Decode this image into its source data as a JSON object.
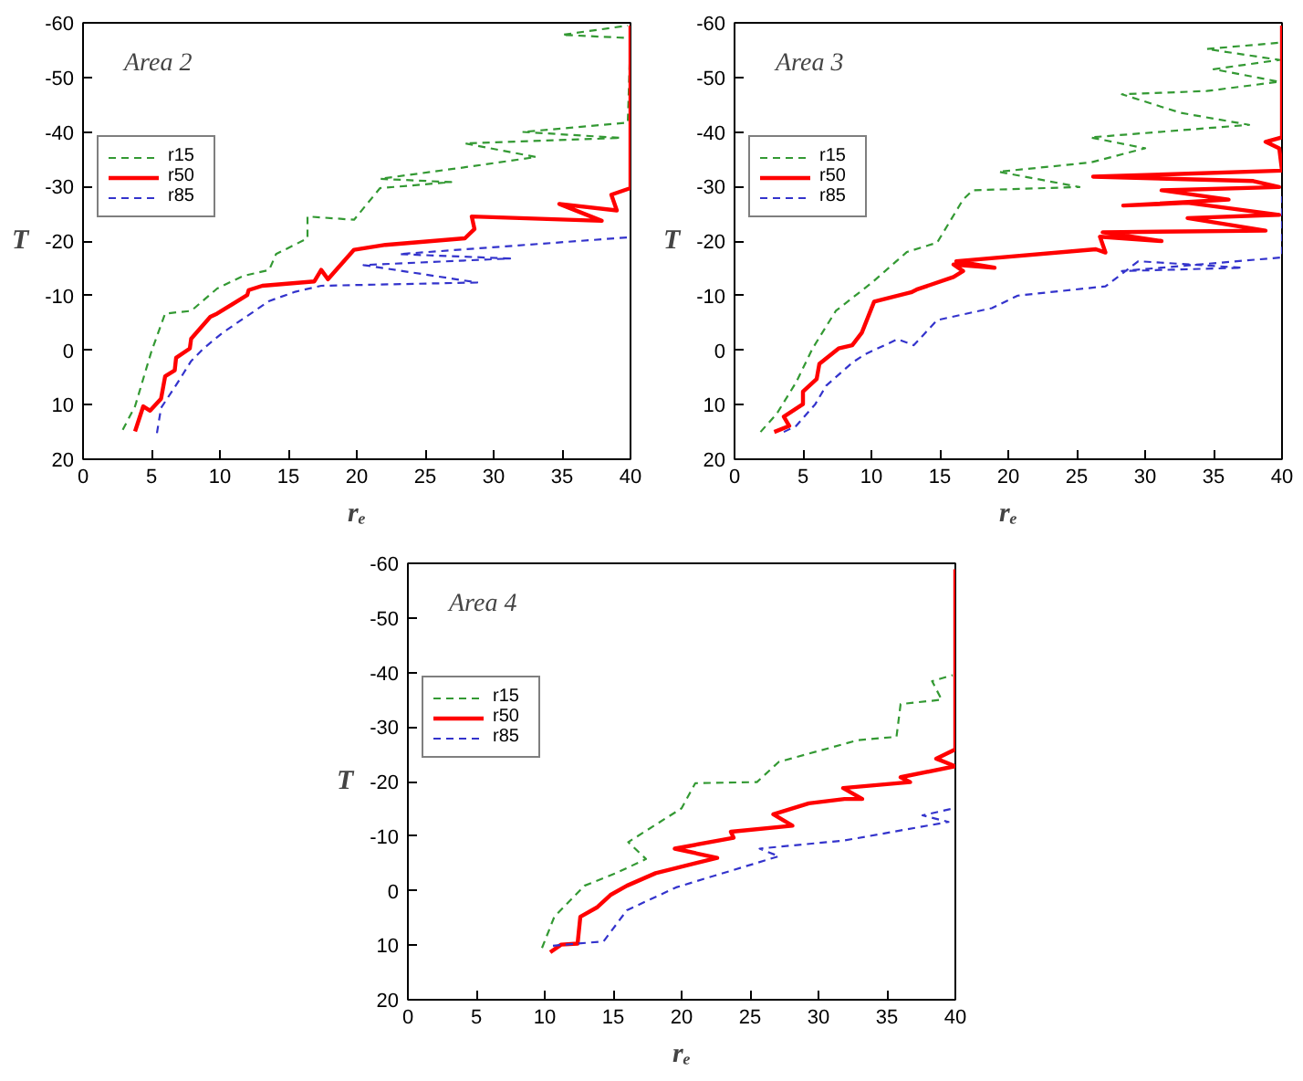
{
  "chart_data": [
    {
      "type": "line",
      "title": "Area 2",
      "xlabel": "rₑ",
      "ylabel": "T",
      "xlim": [
        0,
        40
      ],
      "xticks": [
        0,
        5,
        10,
        15,
        20,
        25,
        30,
        35,
        40
      ],
      "ylim": [
        20,
        -60
      ],
      "yticks": [
        -60,
        -50,
        -40,
        -30,
        -20,
        -10,
        0,
        10,
        20
      ],
      "grid": false,
      "legend": "top left",
      "marker": "none",
      "series": [
        {
          "name": "r15",
          "color": "#339933",
          "line_style": "dashed",
          "x": [
            2.9,
            3.8,
            5.0,
            6.0,
            7.9,
            9.8,
            11.7,
            13.6,
            14.1,
            16.4,
            16.4,
            19.8,
            21.7,
            26.9,
            21.7,
            28.4,
            33.1,
            27.9,
            39.3,
            32.1,
            39.8,
            40.0,
            35.0,
            39.8
          ],
          "values": [
            14.6,
            10.3,
            0.2,
            -6.7,
            -7.2,
            -11.3,
            -13.6,
            -14.7,
            -17.6,
            -20.5,
            -24.5,
            -23.9,
            -29.7,
            -30.8,
            -31.4,
            -33.7,
            -35.4,
            -37.9,
            -38.9,
            -40.0,
            -41.7,
            -57.2,
            -57.8,
            -59.5
          ]
        },
        {
          "name": "r50",
          "color": "#ff0000",
          "line_style": "solid",
          "x": [
            3.8,
            4.4,
            4.9,
            5.7,
            6.0,
            6.7,
            6.8,
            7.8,
            7.9,
            9.3,
            9.8,
            12.0,
            12.1,
            13.1,
            16.9,
            17.4,
            17.9,
            19.8,
            22.1,
            27.9,
            28.6,
            28.4,
            37.9,
            34.8,
            39.0,
            38.6,
            40.0,
            40.0
          ],
          "values": [
            14.9,
            10.3,
            11.1,
            8.9,
            4.8,
            3.7,
            1.4,
            -0.3,
            -2.1,
            -6.1,
            -6.7,
            -10.1,
            -11.0,
            -11.8,
            -12.6,
            -14.7,
            -13.0,
            -18.4,
            -19.3,
            -20.5,
            -22.2,
            -24.5,
            -23.7,
            -26.8,
            -25.6,
            -28.5,
            -29.7,
            -59.5
          ]
        },
        {
          "name": "r85",
          "color": "#3333cc",
          "line_style": "dashed",
          "x": [
            5.4,
            5.7,
            6.9,
            7.9,
            8.8,
            10.2,
            11.9,
            13.6,
            15.5,
            17.4,
            28.8,
            20.5,
            31.2,
            23.1,
            40.0
          ],
          "values": [
            15.2,
            10.6,
            6.0,
            2.0,
            -0.3,
            -3.2,
            -6.1,
            -9.0,
            -10.7,
            -11.8,
            -12.4,
            -15.6,
            -16.8,
            -17.6,
            -20.7
          ]
        }
      ]
    },
    {
      "type": "line",
      "title": "Area 3",
      "xlabel": "rₑ",
      "ylabel": "T",
      "xlim": [
        0,
        40
      ],
      "xticks": [
        0,
        5,
        10,
        15,
        20,
        25,
        30,
        35,
        40
      ],
      "ylim": [
        20,
        -60
      ],
      "yticks": [
        -60,
        -50,
        -40,
        -30,
        -20,
        -10,
        0,
        10,
        20
      ],
      "grid": false,
      "legend": "top left",
      "marker": "none",
      "series": [
        {
          "name": "r15",
          "color": "#339933",
          "line_style": "dashed",
          "x": [
            1.9,
            3.1,
            4.5,
            5.7,
            7.4,
            10.0,
            12.6,
            14.8,
            16.7,
            17.4,
            25.2,
            19.3,
            26.0,
            30.0,
            26.0,
            37.6,
            32.6,
            28.3,
            34.5,
            39.8,
            35.0,
            39.8,
            34.5,
            40.0
          ],
          "values": [
            15.0,
            11.6,
            5.9,
            -0.3,
            -7.2,
            -12.3,
            -18.0,
            -19.7,
            -27.6,
            -29.3,
            -29.9,
            -32.7,
            -34.4,
            -37.0,
            -39.0,
            -41.3,
            -43.5,
            -46.9,
            -47.5,
            -49.2,
            -51.5,
            -53.2,
            -55.2,
            -56.4
          ]
        },
        {
          "name": "r50",
          "color": "#ff0000",
          "line_style": "solid",
          "x": [
            2.9,
            4.0,
            3.6,
            5.0,
            5.0,
            6.0,
            6.2,
            7.6,
            8.6,
            9.3,
            10.2,
            12.9,
            13.3,
            16.0,
            16.7,
            16.0,
            19.0,
            16.2,
            26.4,
            27.1,
            26.7,
            31.2,
            26.9,
            38.8,
            33.1,
            39.8,
            33.1,
            28.4,
            36.1,
            31.2,
            39.8,
            37.9,
            26.2,
            40.0,
            39.8,
            38.8,
            40.0,
            40.0
          ],
          "values": [
            15.0,
            13.9,
            12.2,
            9.9,
            7.6,
            5.3,
            2.5,
            -0.3,
            -0.9,
            -3.2,
            -8.9,
            -10.6,
            -11.1,
            -13.4,
            -14.5,
            -15.7,
            -15.1,
            -16.3,
            -18.5,
            -17.9,
            -20.8,
            -20.0,
            -21.6,
            -21.9,
            -24.2,
            -24.8,
            -27.0,
            -26.5,
            -27.6,
            -29.3,
            -29.9,
            -31.0,
            -31.8,
            -32.9,
            -37.0,
            -38.2,
            -39.0,
            -59.5
          ]
        },
        {
          "name": "r85",
          "color": "#3333cc",
          "line_style": "dashed",
          "x": [
            3.6,
            4.5,
            5.9,
            6.7,
            8.6,
            9.5,
            11.9,
            13.1,
            14.8,
            18.8,
            20.7,
            27.1,
            29.5,
            37.1,
            28.3,
            40.0,
            40.0
          ],
          "values": [
            15.0,
            13.9,
            9.9,
            6.5,
            2.3,
            0.8,
            -2.0,
            -0.9,
            -5.5,
            -7.7,
            -10.0,
            -11.7,
            -16.3,
            -15.1,
            -14.5,
            -17.0,
            -28.2
          ]
        }
      ]
    },
    {
      "type": "line",
      "title": "Area 4",
      "xlabel": "rₑ",
      "ylabel": "T",
      "xlim": [
        0,
        40
      ],
      "xticks": [
        0,
        5,
        10,
        15,
        20,
        25,
        30,
        35,
        40
      ],
      "ylim": [
        20,
        -60
      ],
      "yticks": [
        -60,
        -50,
        -40,
        -30,
        -20,
        -10,
        0,
        10,
        20
      ],
      "grid": false,
      "legend": "top left",
      "marker": "none",
      "series": [
        {
          "name": "r15",
          "color": "#339933",
          "line_style": "dashed",
          "x": [
            9.8,
            10.7,
            12.9,
            15.2,
            17.4,
            16.1,
            20.0,
            21.0,
            25.5,
            27.1,
            32.9,
            35.7,
            36.0,
            39.0,
            38.3,
            39.8
          ],
          "values": [
            10.5,
            4.8,
            -0.9,
            -3.2,
            -5.8,
            -8.9,
            -15.1,
            -19.7,
            -19.9,
            -23.6,
            -27.6,
            -28.2,
            -34.2,
            -35.0,
            -38.4,
            -39.5
          ]
        },
        {
          "name": "r50",
          "color": "#ff0000",
          "line_style": "solid",
          "x": [
            10.4,
            11.2,
            12.4,
            12.6,
            13.8,
            14.8,
            16.0,
            18.1,
            22.6,
            19.5,
            23.8,
            23.6,
            28.1,
            26.7,
            29.3,
            31.9,
            33.2,
            31.8,
            36.7,
            36.0,
            40.0,
            38.6,
            40.0,
            40.0
          ],
          "values": [
            11.3,
            9.9,
            9.7,
            4.8,
            3.1,
            0.8,
            -0.9,
            -3.2,
            -6.0,
            -7.7,
            -9.7,
            -10.8,
            -11.9,
            -14.0,
            -16.0,
            -16.8,
            -16.8,
            -18.8,
            -19.9,
            -20.8,
            -22.8,
            -24.2,
            -25.9,
            -58.9
          ]
        },
        {
          "name": "r85",
          "color": "#3333cc",
          "line_style": "dashed",
          "x": [
            10.6,
            14.3,
            16.0,
            19.6,
            23.8,
            27.1,
            25.7,
            31.9,
            39.5,
            37.6,
            39.9
          ],
          "values": [
            10.1,
            9.3,
            3.6,
            -0.6,
            -3.8,
            -6.3,
            -7.7,
            -9.2,
            -12.6,
            -13.8,
            -15.1
          ]
        }
      ]
    }
  ]
}
